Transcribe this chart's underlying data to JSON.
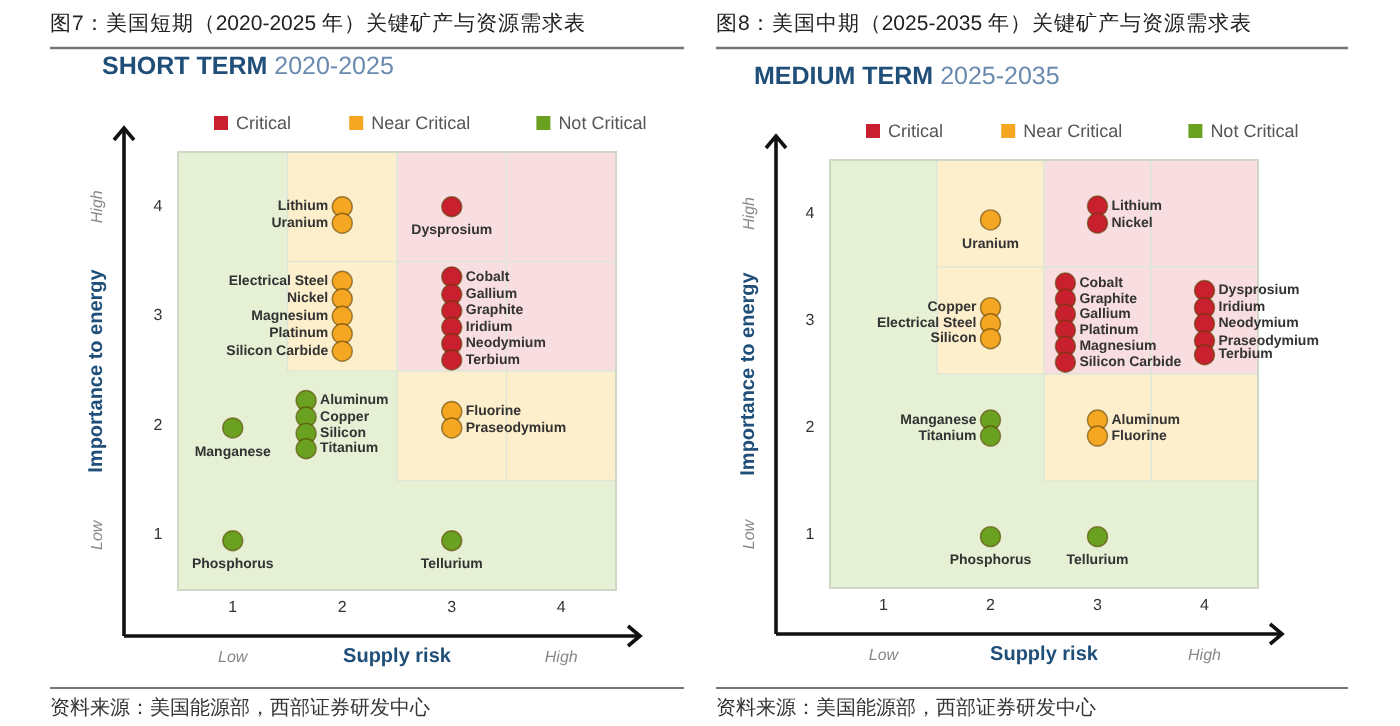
{
  "chart_data": [
    {
      "type": "scatter",
      "title": "图7：美国短期（2020-2025 年）关键矿产与资源需求表",
      "subtitle": "SHORT TERM 2020-2025",
      "xlabel": "Supply risk",
      "ylabel": "Importance to energy",
      "xlim": [
        0.5,
        4.5
      ],
      "ylim": [
        0.5,
        4.5
      ],
      "xticks": [
        1,
        2,
        3,
        4
      ],
      "yticks": [
        1,
        2,
        3,
        4
      ],
      "grid": false,
      "legend": "top",
      "marker": "circle",
      "series": [
        {
          "name": "Critical",
          "color": "#c8202f",
          "x": [
            3,
            3,
            3,
            3,
            3,
            3,
            3
          ],
          "values": [
            4.0,
            3.36,
            3.2,
            3.05,
            2.9,
            2.75,
            2.6
          ]
        },
        {
          "name": "Near Critical",
          "color": "#f5a623",
          "x": [
            2,
            2,
            2,
            2,
            2,
            2,
            2,
            3,
            3
          ],
          "values": [
            4.0,
            3.85,
            3.32,
            3.16,
            3.0,
            2.84,
            2.68,
            2.13,
            1.98
          ]
        },
        {
          "name": "Not Critical",
          "color": "#6aa121",
          "x": [
            1.67,
            1.67,
            1.67,
            1.67,
            1,
            1,
            3
          ],
          "values": [
            2.23,
            2.08,
            1.93,
            1.79,
            1.98,
            0.95,
            0.95
          ]
        }
      ],
      "annotations": [
        "Low",
        "High",
        "Low",
        "High",
        "资料来源：美国能源部，西部证券研发中心",
        {
          "text": "Lithium",
          "x": 2,
          "y": 4.0
        },
        {
          "text": "Uranium",
          "x": 2,
          "y": 3.85
        },
        {
          "text": "Dysprosium",
          "x": 3,
          "y": 4.0
        },
        {
          "text": "Electrical Steel",
          "x": 2,
          "y": 3.32
        },
        {
          "text": "Nickel",
          "x": 2,
          "y": 3.16
        },
        {
          "text": "Magnesium",
          "x": 2,
          "y": 3.0
        },
        {
          "text": "Platinum",
          "x": 2,
          "y": 2.84
        },
        {
          "text": "Silicon Carbide",
          "x": 2,
          "y": 2.68
        },
        {
          "text": "Cobalt",
          "x": 3,
          "y": 3.36
        },
        {
          "text": "Gallium",
          "x": 3,
          "y": 3.2
        },
        {
          "text": "Graphite",
          "x": 3,
          "y": 3.05
        },
        {
          "text": "Iridium",
          "x": 3,
          "y": 2.9
        },
        {
          "text": "Neodymium",
          "x": 3,
          "y": 2.75
        },
        {
          "text": "Terbium",
          "x": 3,
          "y": 2.6
        },
        {
          "text": "Aluminum",
          "x": 1.67,
          "y": 2.23
        },
        {
          "text": "Copper",
          "x": 1.67,
          "y": 2.08
        },
        {
          "text": "Silicon",
          "x": 1.67,
          "y": 1.93
        },
        {
          "text": "Titanium",
          "x": 1.67,
          "y": 1.79
        },
        {
          "text": "Manganese",
          "x": 1,
          "y": 1.98
        },
        {
          "text": "Fluorine",
          "x": 3,
          "y": 2.13
        },
        {
          "text": "Praseodymium",
          "x": 3,
          "y": 1.98
        },
        {
          "text": "Phosphorus",
          "x": 1,
          "y": 0.95
        },
        {
          "text": "Tellurium",
          "x": 3,
          "y": 0.95
        }
      ]
    },
    {
      "type": "scatter",
      "title": "图8：美国中期（2025-2035 年）关键矿产与资源需求表",
      "subtitle": "MEDIUM TERM 2025-2035",
      "xlabel": "Supply risk",
      "ylabel": "Importance to energy",
      "xlim": [
        0.5,
        4.5
      ],
      "ylim": [
        0.5,
        4.5
      ],
      "xticks": [
        1,
        2,
        3,
        4
      ],
      "yticks": [
        1,
        2,
        3,
        4
      ],
      "grid": false,
      "legend": "top",
      "marker": "circle",
      "series": [
        {
          "name": "Critical",
          "color": "#c8202f",
          "x": [
            3,
            3,
            2.7,
            2.7,
            2.7,
            2.7,
            2.7,
            2.7,
            4,
            4,
            4,
            4,
            4
          ],
          "values": [
            4.07,
            3.91,
            3.35,
            3.2,
            3.06,
            2.91,
            2.76,
            2.61,
            3.28,
            3.12,
            2.97,
            2.81,
            2.68
          ]
        },
        {
          "name": "Near Critical",
          "color": "#f5a623",
          "x": [
            2,
            2,
            2,
            2,
            3,
            3
          ],
          "values": [
            3.94,
            3.12,
            2.97,
            2.83,
            2.07,
            1.92
          ]
        },
        {
          "name": "Not Critical",
          "color": "#6aa121",
          "x": [
            2,
            2,
            2,
            3
          ],
          "values": [
            2.07,
            1.92,
            0.98,
            0.98
          ]
        }
      ],
      "annotations": [
        "Low",
        "High",
        "Low",
        "High",
        "资料来源：美国能源部，西部证券研发中心",
        {
          "text": "Uranium",
          "x": 2,
          "y": 3.94
        },
        {
          "text": "Lithium",
          "x": 3,
          "y": 4.07
        },
        {
          "text": "Nickel",
          "x": 3,
          "y": 3.91
        },
        {
          "text": "Copper",
          "x": 2,
          "y": 3.12
        },
        {
          "text": "Electrical Steel",
          "x": 2,
          "y": 2.97
        },
        {
          "text": "Silicon",
          "x": 2,
          "y": 2.83
        },
        {
          "text": "Cobalt",
          "x": 2.7,
          "y": 3.35
        },
        {
          "text": "Graphite",
          "x": 2.7,
          "y": 3.2
        },
        {
          "text": "Gallium",
          "x": 2.7,
          "y": 3.06
        },
        {
          "text": "Platinum",
          "x": 2.7,
          "y": 2.91
        },
        {
          "text": "Magnesium",
          "x": 2.7,
          "y": 2.76
        },
        {
          "text": "Silicon Carbide",
          "x": 2.7,
          "y": 2.61
        },
        {
          "text": "Dysprosium",
          "x": 4,
          "y": 3.28
        },
        {
          "text": "Iridium",
          "x": 4,
          "y": 3.12
        },
        {
          "text": "Neodymium",
          "x": 4,
          "y": 2.97
        },
        {
          "text": "Praseodymium",
          "x": 4,
          "y": 2.81
        },
        {
          "text": "Terbium",
          "x": 4,
          "y": 2.68
        },
        {
          "text": "Manganese",
          "x": 2,
          "y": 2.07
        },
        {
          "text": "Titanium",
          "x": 2,
          "y": 1.92
        },
        {
          "text": "Aluminum",
          "x": 3,
          "y": 2.07
        },
        {
          "text": "Fluorine",
          "x": 3,
          "y": 1.92
        },
        {
          "text": "Phosphorus",
          "x": 2,
          "y": 0.98
        },
        {
          "text": "Tellurium",
          "x": 3,
          "y": 0.98
        }
      ]
    }
  ]
}
